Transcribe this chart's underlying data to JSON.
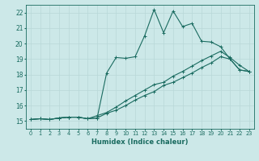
{
  "xlabel": "Humidex (Indice chaleur)",
  "xlim_min": -0.5,
  "xlim_max": 23.5,
  "ylim_min": 14.5,
  "ylim_max": 22.5,
  "xticks": [
    0,
    1,
    2,
    3,
    4,
    5,
    6,
    7,
    8,
    9,
    10,
    11,
    12,
    13,
    14,
    15,
    16,
    17,
    18,
    19,
    20,
    21,
    22,
    23
  ],
  "yticks": [
    15,
    16,
    17,
    18,
    19,
    20,
    21,
    22
  ],
  "bg_color": "#cce8e8",
  "line_color": "#1a6b60",
  "grid_color": "#b8d8d8",
  "line1_x": [
    0,
    1,
    2,
    3,
    4,
    5,
    6,
    7,
    8,
    9,
    10,
    11,
    12,
    13,
    14,
    15,
    16,
    17,
    18,
    19,
    20,
    21,
    22,
    23
  ],
  "line1_y": [
    15.1,
    15.15,
    15.1,
    15.2,
    15.25,
    15.25,
    15.15,
    15.2,
    18.1,
    19.1,
    19.05,
    19.15,
    20.5,
    22.2,
    20.7,
    22.1,
    21.1,
    21.3,
    20.15,
    20.1,
    19.8,
    19.0,
    18.3,
    18.2
  ],
  "line2_x": [
    0,
    1,
    2,
    3,
    4,
    5,
    6,
    7,
    8,
    9,
    10,
    11,
    12,
    13,
    14,
    15,
    16,
    17,
    18,
    19,
    20,
    21,
    22,
    23
  ],
  "line2_y": [
    15.1,
    15.15,
    15.1,
    15.2,
    15.25,
    15.25,
    15.15,
    15.2,
    15.5,
    15.7,
    16.0,
    16.35,
    16.65,
    16.9,
    17.3,
    17.5,
    17.8,
    18.1,
    18.45,
    18.75,
    19.15,
    19.0,
    18.3,
    18.2
  ],
  "line3_x": [
    0,
    1,
    2,
    3,
    4,
    5,
    6,
    7,
    8,
    9,
    10,
    11,
    12,
    13,
    14,
    15,
    16,
    17,
    18,
    19,
    20,
    21,
    22,
    23
  ],
  "line3_y": [
    15.1,
    15.15,
    15.1,
    15.2,
    15.25,
    15.25,
    15.15,
    15.35,
    15.55,
    15.9,
    16.3,
    16.65,
    17.0,
    17.35,
    17.5,
    17.9,
    18.2,
    18.55,
    18.9,
    19.2,
    19.5,
    19.1,
    18.6,
    18.2
  ]
}
